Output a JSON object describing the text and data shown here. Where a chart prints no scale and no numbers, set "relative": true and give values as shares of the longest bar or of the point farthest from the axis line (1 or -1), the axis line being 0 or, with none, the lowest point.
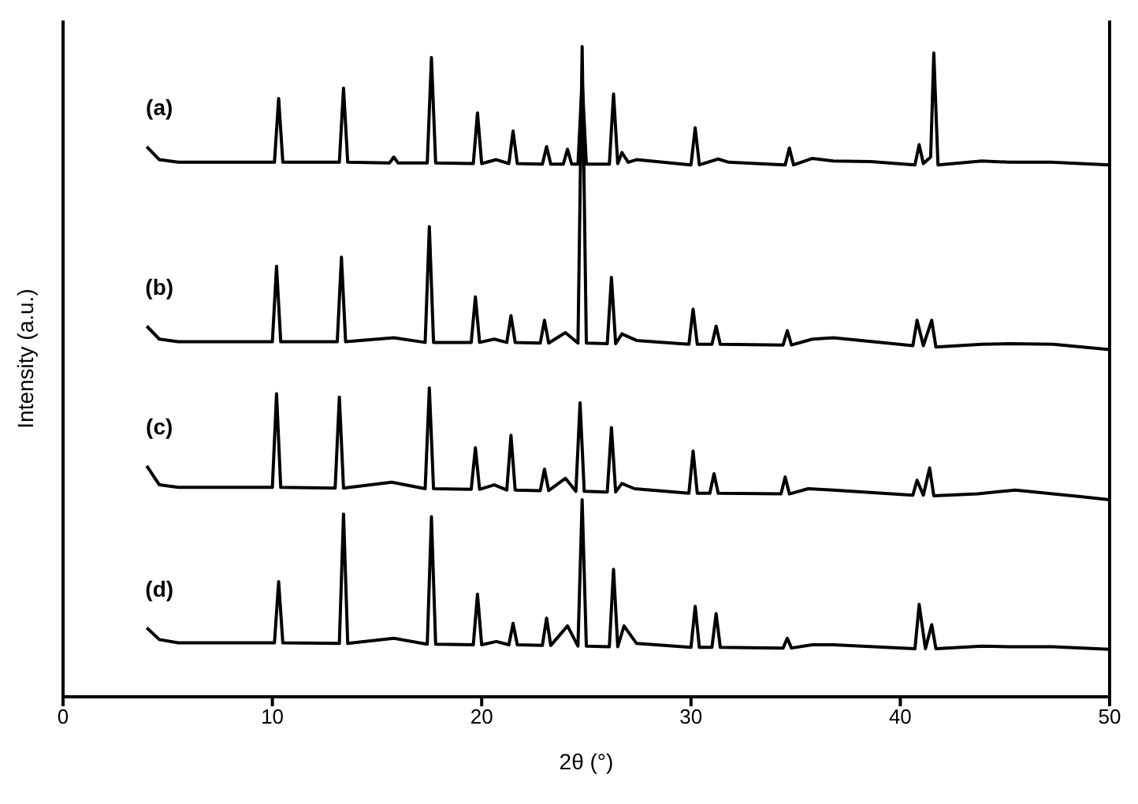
{
  "chart_data": {
    "type": "line",
    "relative": true,
    "xlabel": "2θ (°)",
    "ylabel": "Intensity (a.u.)",
    "xlim": [
      0,
      50
    ],
    "xticks": [
      0,
      10,
      20,
      30,
      40,
      50
    ],
    "grid": false,
    "legend": false,
    "line_style": "solid",
    "series": [
      {
        "name": "(a)",
        "color": "#000000",
        "x": [
          4.0,
          4.6,
          5.5,
          10.1,
          10.3,
          10.5,
          13.2,
          13.4,
          13.6,
          15.6,
          15.8,
          16.0,
          17.4,
          17.6,
          17.8,
          19.6,
          19.8,
          20.0,
          20.7,
          21.3,
          21.5,
          21.7,
          22.9,
          23.1,
          23.3,
          23.9,
          24.1,
          24.3,
          24.6,
          24.8,
          25.0,
          26.1,
          26.3,
          26.5,
          26.7,
          27.0,
          27.4,
          30.0,
          30.2,
          30.4,
          31.3,
          31.8,
          34.5,
          34.7,
          34.9,
          35.8,
          36.8,
          38.6,
          40.7,
          40.9,
          41.1,
          41.45,
          41.6,
          41.8,
          43.9,
          45.2,
          47.2,
          50.0
        ],
        "values": [
          0.846,
          0.826,
          0.822,
          0.822,
          0.92,
          0.822,
          0.822,
          0.936,
          0.822,
          0.821,
          0.83,
          0.821,
          0.821,
          0.983,
          0.821,
          0.82,
          0.898,
          0.82,
          0.826,
          0.82,
          0.87,
          0.82,
          0.819,
          0.846,
          0.819,
          0.819,
          0.842,
          0.819,
          0.819,
          0.948,
          0.819,
          0.819,
          0.927,
          0.82,
          0.837,
          0.822,
          0.826,
          0.818,
          0.875,
          0.818,
          0.827,
          0.822,
          0.818,
          0.844,
          0.818,
          0.828,
          0.824,
          0.823,
          0.818,
          0.849,
          0.82,
          0.83,
          0.99,
          0.818,
          0.824,
          0.822,
          0.822,
          0.818
        ]
      },
      {
        "name": "(b)",
        "color": "#000000",
        "x": [
          4.0,
          4.6,
          5.5,
          10.0,
          10.2,
          10.4,
          13.1,
          13.3,
          13.5,
          15.8,
          17.3,
          17.5,
          17.7,
          19.5,
          19.7,
          19.9,
          20.6,
          21.2,
          21.4,
          21.6,
          22.8,
          23.0,
          23.2,
          24.0,
          24.6,
          24.8,
          25.0,
          26.0,
          26.2,
          26.4,
          26.7,
          27.4,
          29.9,
          30.1,
          30.3,
          31.0,
          31.2,
          31.4,
          34.4,
          34.6,
          34.8,
          35.8,
          36.8,
          40.6,
          40.8,
          41.1,
          41.5,
          41.7,
          43.9,
          45.2,
          47.3,
          50.0
        ],
        "values": [
          0.57,
          0.55,
          0.546,
          0.546,
          0.662,
          0.546,
          0.546,
          0.676,
          0.546,
          0.552,
          0.545,
          0.723,
          0.545,
          0.545,
          0.615,
          0.545,
          0.55,
          0.545,
          0.586,
          0.545,
          0.544,
          0.579,
          0.544,
          0.56,
          0.544,
          1.0,
          0.544,
          0.543,
          0.645,
          0.543,
          0.558,
          0.548,
          0.542,
          0.596,
          0.542,
          0.542,
          0.57,
          0.542,
          0.541,
          0.563,
          0.541,
          0.55,
          0.552,
          0.54,
          0.579,
          0.54,
          0.579,
          0.538,
          0.542,
          0.543,
          0.542,
          0.534
        ]
      },
      {
        "name": "(c)",
        "color": "#000000",
        "x": [
          4.0,
          4.6,
          5.5,
          10.0,
          10.2,
          10.4,
          13.0,
          13.2,
          13.4,
          15.7,
          17.3,
          17.5,
          17.7,
          19.5,
          19.7,
          19.9,
          20.6,
          21.2,
          21.4,
          21.6,
          22.8,
          23.0,
          23.2,
          24.0,
          24.5,
          24.7,
          24.9,
          26.0,
          26.2,
          26.4,
          26.7,
          27.3,
          29.9,
          30.1,
          30.3,
          30.9,
          31.1,
          31.3,
          34.3,
          34.5,
          34.7,
          35.6,
          36.8,
          40.6,
          40.8,
          41.1,
          41.4,
          41.6,
          43.7,
          45.5,
          48.6,
          50.0
        ],
        "values": [
          0.355,
          0.326,
          0.322,
          0.322,
          0.466,
          0.322,
          0.321,
          0.461,
          0.321,
          0.33,
          0.32,
          0.475,
          0.32,
          0.319,
          0.383,
          0.319,
          0.326,
          0.318,
          0.402,
          0.318,
          0.317,
          0.35,
          0.317,
          0.336,
          0.316,
          0.452,
          0.316,
          0.315,
          0.414,
          0.315,
          0.328,
          0.32,
          0.313,
          0.378,
          0.313,
          0.313,
          0.343,
          0.313,
          0.312,
          0.338,
          0.312,
          0.32,
          0.318,
          0.31,
          0.333,
          0.31,
          0.352,
          0.309,
          0.312,
          0.318,
          0.308,
          0.303
        ]
      },
      {
        "name": "(d)",
        "color": "#000000",
        "x": [
          4.0,
          4.6,
          5.5,
          10.1,
          10.3,
          10.5,
          13.2,
          13.4,
          13.6,
          15.8,
          17.4,
          17.6,
          17.8,
          19.6,
          19.8,
          20.0,
          20.7,
          21.3,
          21.5,
          21.7,
          22.9,
          23.1,
          23.3,
          24.1,
          24.6,
          24.8,
          25.0,
          26.1,
          26.3,
          26.5,
          26.8,
          27.4,
          30.0,
          30.2,
          30.4,
          31.0,
          31.2,
          31.4,
          34.4,
          34.6,
          34.8,
          35.8,
          36.8,
          40.7,
          40.9,
          41.2,
          41.5,
          41.7,
          43.9,
          45.2,
          47.3,
          50.0
        ],
        "values": [
          0.106,
          0.088,
          0.083,
          0.083,
          0.177,
          0.083,
          0.082,
          0.281,
          0.082,
          0.09,
          0.081,
          0.277,
          0.081,
          0.08,
          0.158,
          0.08,
          0.085,
          0.08,
          0.113,
          0.08,
          0.079,
          0.121,
          0.079,
          0.109,
          0.078,
          0.303,
          0.078,
          0.077,
          0.196,
          0.077,
          0.109,
          0.082,
          0.076,
          0.139,
          0.076,
          0.076,
          0.128,
          0.076,
          0.075,
          0.09,
          0.075,
          0.08,
          0.08,
          0.074,
          0.142,
          0.074,
          0.111,
          0.074,
          0.078,
          0.077,
          0.077,
          0.073
        ]
      }
    ]
  }
}
